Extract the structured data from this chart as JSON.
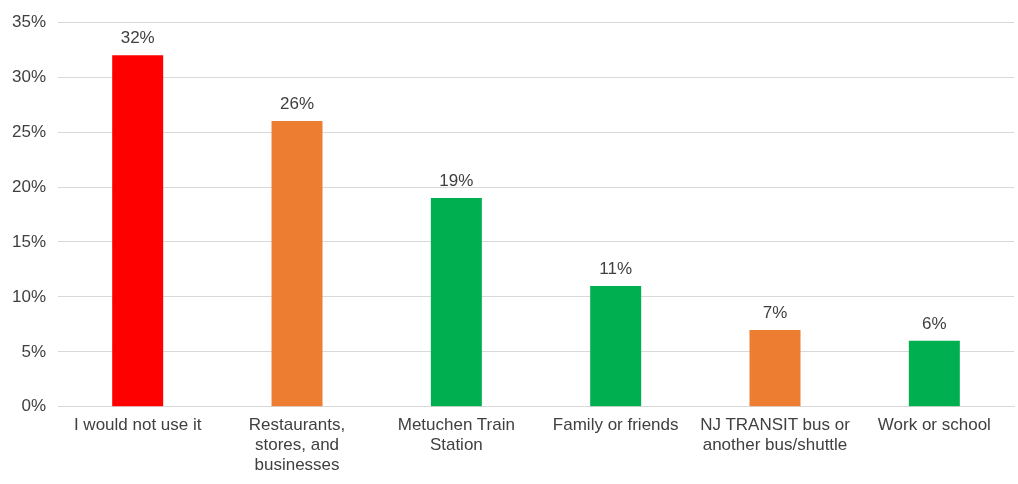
{
  "chart_data": {
    "type": "bar",
    "categories": [
      "I would not use it",
      "Restaurants, stores, and businesses",
      "Metuchen Train Station",
      "Family or friends",
      "NJ TRANSIT bus or another bus/shuttle",
      "Work or school"
    ],
    "values": [
      32,
      26,
      19,
      11,
      7,
      6
    ],
    "colors": [
      "#ff0000",
      "#ed7d31",
      "#00b050",
      "#00b050",
      "#ed7d31",
      "#00b050"
    ],
    "value_labels": [
      "32%",
      "26%",
      "19%",
      "11%",
      "7%",
      "6%"
    ],
    "ylim": [
      0,
      35
    ],
    "yticks": [
      {
        "value": 0,
        "label": "0%"
      },
      {
        "value": 5,
        "label": "5%"
      },
      {
        "value": 10,
        "label": "10%"
      },
      {
        "value": 15,
        "label": "15%"
      },
      {
        "value": 20,
        "label": "20%"
      },
      {
        "value": 25,
        "label": "25%"
      },
      {
        "value": 30,
        "label": "30%"
      },
      {
        "value": 35,
        "label": "35%"
      }
    ],
    "grid": "y",
    "legend": false
  }
}
